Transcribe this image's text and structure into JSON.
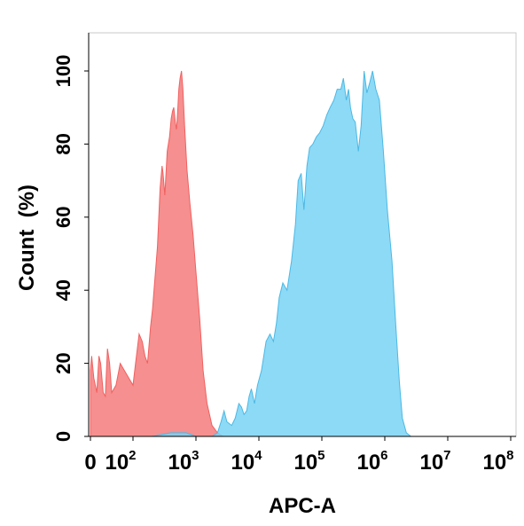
{
  "chart_data": {
    "type": "area",
    "xlabel": "APC-A",
    "ylabel": "Count  (%)",
    "x_scale": "biexponential",
    "ylim": [
      0,
      100
    ],
    "grid": false,
    "x_ticks": [
      {
        "base": "0",
        "exp": ""
      },
      {
        "base": "10",
        "exp": "2"
      },
      {
        "base": "10",
        "exp": "3"
      },
      {
        "base": "10",
        "exp": "4"
      },
      {
        "base": "10",
        "exp": "5"
      },
      {
        "base": "10",
        "exp": "6"
      },
      {
        "base": "10",
        "exp": "7"
      },
      {
        "base": "10",
        "exp": "8"
      }
    ],
    "y_ticks": [
      "0",
      "20",
      "40",
      "60",
      "80",
      "100"
    ],
    "y_tick_values": [
      0,
      20,
      40,
      60,
      80,
      100
    ],
    "series": [
      {
        "color": "#f06060",
        "fill": "#f47b7b",
        "points": [
          [
            0,
            18
          ],
          [
            3,
            22
          ],
          [
            8,
            16
          ],
          [
            15,
            12
          ],
          [
            20,
            22
          ],
          [
            24,
            20
          ],
          [
            30,
            12
          ],
          [
            35,
            11
          ],
          [
            40,
            24
          ],
          [
            45,
            20
          ],
          [
            50,
            12
          ],
          [
            60,
            14
          ],
          [
            70,
            20
          ],
          [
            85,
            17
          ],
          [
            100,
            14
          ],
          [
            110,
            20
          ],
          [
            125,
            28
          ],
          [
            140,
            26
          ],
          [
            155,
            22
          ],
          [
            170,
            20
          ],
          [
            190,
            30
          ],
          [
            205,
            35
          ],
          [
            225,
            44
          ],
          [
            245,
            52
          ],
          [
            270,
            68
          ],
          [
            290,
            74
          ],
          [
            300,
            72
          ],
          [
            320,
            66
          ],
          [
            350,
            78
          ],
          [
            380,
            82
          ],
          [
            405,
            87
          ],
          [
            425,
            89
          ],
          [
            445,
            90
          ],
          [
            470,
            86
          ],
          [
            490,
            84
          ],
          [
            510,
            88
          ],
          [
            535,
            95
          ],
          [
            560,
            98
          ],
          [
            590,
            100
          ],
          [
            620,
            95
          ],
          [
            660,
            85
          ],
          [
            720,
            73
          ],
          [
            800,
            64
          ],
          [
            900,
            55
          ],
          [
            1000,
            45
          ],
          [
            1150,
            32
          ],
          [
            1300,
            18
          ],
          [
            1500,
            9
          ],
          [
            1800,
            3
          ],
          [
            2200,
            1
          ],
          [
            2700,
            0
          ]
        ]
      },
      {
        "color": "#4cb8e4",
        "fill": "#79d3f5",
        "points": [
          [
            25,
            0
          ],
          [
            80,
            0
          ],
          [
            200,
            0
          ],
          [
            400,
            1
          ],
          [
            700,
            1
          ],
          [
            1000,
            0
          ],
          [
            1800,
            0
          ],
          [
            2200,
            1
          ],
          [
            2500,
            4
          ],
          [
            2800,
            7
          ],
          [
            3100,
            4
          ],
          [
            3700,
            3
          ],
          [
            4200,
            5
          ],
          [
            4800,
            9
          ],
          [
            5300,
            8
          ],
          [
            5800,
            6
          ],
          [
            6400,
            7
          ],
          [
            7000,
            11
          ],
          [
            7600,
            13
          ],
          [
            8500,
            9
          ],
          [
            9500,
            14
          ],
          [
            11000,
            18
          ],
          [
            13000,
            26
          ],
          [
            15000,
            28
          ],
          [
            17000,
            26
          ],
          [
            19000,
            31
          ],
          [
            21000,
            38
          ],
          [
            24000,
            42
          ],
          [
            28000,
            40
          ],
          [
            33000,
            48
          ],
          [
            38000,
            58
          ],
          [
            42000,
            70
          ],
          [
            47000,
            72
          ],
          [
            52000,
            62
          ],
          [
            58000,
            74
          ],
          [
            64000,
            79
          ],
          [
            72000,
            80
          ],
          [
            82000,
            82
          ],
          [
            92000,
            83
          ],
          [
            105000,
            85
          ],
          [
            120000,
            88
          ],
          [
            135000,
            90
          ],
          [
            155000,
            92
          ],
          [
            175000,
            95
          ],
          [
            200000,
            95
          ],
          [
            220000,
            98
          ],
          [
            245000,
            92
          ],
          [
            265000,
            95
          ],
          [
            285000,
            90
          ],
          [
            310000,
            87
          ],
          [
            340000,
            86
          ],
          [
            380000,
            78
          ],
          [
            420000,
            85
          ],
          [
            470000,
            100
          ],
          [
            520000,
            94
          ],
          [
            580000,
            97
          ],
          [
            640000,
            100
          ],
          [
            720000,
            95
          ],
          [
            820000,
            92
          ],
          [
            950000,
            78
          ],
          [
            1100000,
            62
          ],
          [
            1300000,
            48
          ],
          [
            1500000,
            30
          ],
          [
            1700000,
            15
          ],
          [
            1900000,
            5
          ],
          [
            2200000,
            1
          ],
          [
            2600000,
            0
          ]
        ]
      }
    ]
  }
}
